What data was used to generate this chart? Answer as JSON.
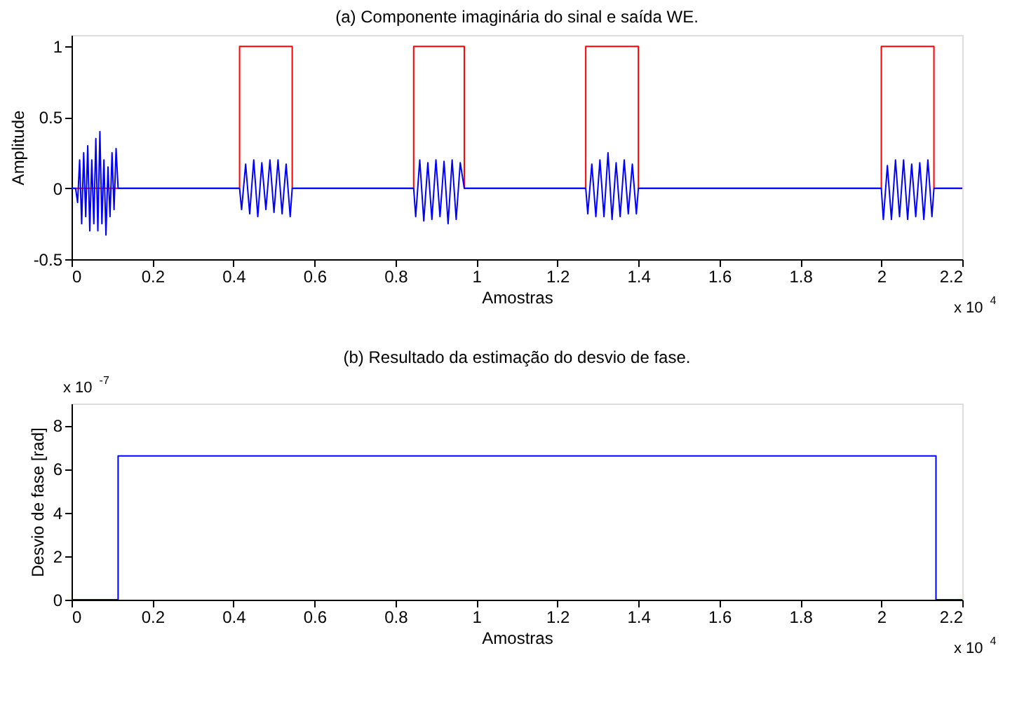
{
  "chart_data": [
    {
      "type": "line",
      "title": "(a) Componente imaginária do sinal e saída WE.",
      "xlabel": "Amostras",
      "ylabel": "Amplitude",
      "grid": false,
      "legend": false,
      "xlim": [
        0,
        2.2
      ],
      "ylim": [
        -0.5,
        1.08
      ],
      "xticks": [
        0,
        0.2,
        0.4,
        0.6,
        0.8,
        1,
        1.2,
        1.4,
        1.6,
        1.8,
        2,
        2.2
      ],
      "yticks": [
        -0.5,
        0,
        0.5,
        1
      ],
      "annotations": [
        "x 10$^{4}$"
      ],
      "series": [
        {
          "color": "#ff0000",
          "x": [
            0,
            0.415,
            0.415,
            0.545,
            0.545,
            0.845,
            0.845,
            0.97,
            0.97,
            1.27,
            1.27,
            1.4,
            1.4,
            2,
            2,
            2.13,
            2.13,
            2.2
          ],
          "values": [
            0,
            0,
            1,
            1,
            0,
            0,
            1,
            1,
            0,
            0,
            1,
            1,
            0,
            0,
            1,
            1,
            0,
            0
          ]
        },
        {
          "color": "#0000ff",
          "x": [
            0,
            0.01,
            0.015,
            0.02,
            0.025,
            0.03,
            0.035,
            0.04,
            0.045,
            0.05,
            0.055,
            0.06,
            0.065,
            0.07,
            0.075,
            0.08,
            0.085,
            0.09,
            0.095,
            0.1,
            0.105,
            0.11,
            0.115,
            0.415,
            0.42,
            0.43,
            0.44,
            0.45,
            0.46,
            0.47,
            0.48,
            0.49,
            0.5,
            0.51,
            0.52,
            0.53,
            0.54,
            0.545,
            0.845,
            0.85,
            0.86,
            0.87,
            0.88,
            0.89,
            0.9,
            0.91,
            0.92,
            0.93,
            0.94,
            0.95,
            0.96,
            0.97,
            1.27,
            1.275,
            1.285,
            1.295,
            1.305,
            1.315,
            1.325,
            1.335,
            1.345,
            1.355,
            1.365,
            1.375,
            1.385,
            1.395,
            1.4,
            2,
            2.005,
            2.015,
            2.025,
            2.035,
            2.045,
            2.055,
            2.065,
            2.075,
            2.085,
            2.095,
            2.105,
            2.115,
            2.125,
            2.13,
            2.2
          ],
          "values": [
            0,
            0,
            -0.1,
            0.2,
            -0.25,
            0.25,
            -0.2,
            0.3,
            -0.3,
            0.2,
            -0.25,
            0.35,
            -0.3,
            0.4,
            -0.25,
            0.2,
            -0.33,
            0.15,
            -0.2,
            0.25,
            -0.15,
            0.28,
            0,
            0,
            -0.15,
            0.17,
            -0.18,
            0.2,
            -0.2,
            0.18,
            -0.15,
            0.2,
            -0.17,
            0.2,
            -0.18,
            0.17,
            -0.2,
            0,
            0,
            -0.2,
            0.2,
            -0.23,
            0.18,
            -0.22,
            0.2,
            -0.2,
            0.19,
            -0.25,
            0.2,
            -0.22,
            0.18,
            0,
            0,
            -0.18,
            0.17,
            -0.2,
            0.2,
            -0.2,
            0.25,
            -0.22,
            0.18,
            -0.2,
            0.2,
            -0.18,
            0.17,
            -0.18,
            0,
            0,
            -0.22,
            0.16,
            -0.22,
            0.2,
            -0.2,
            0.2,
            -0.22,
            0.17,
            -0.2,
            0.18,
            -0.22,
            0.2,
            -0.2,
            0,
            0
          ]
        }
      ]
    },
    {
      "type": "step",
      "title": "(b) Resultado da estimação do desvio de fase.",
      "xlabel": "Amostras",
      "ylabel": "Desvio de fase [rad]",
      "grid": false,
      "legend": false,
      "xlim": [
        0,
        2.2
      ],
      "ylim": [
        0,
        9
      ],
      "xticks": [
        0,
        0.2,
        0.4,
        0.6,
        0.8,
        1,
        1.2,
        1.4,
        1.6,
        1.8,
        2,
        2.2
      ],
      "yticks": [
        0,
        2,
        4,
        6,
        8
      ],
      "annotations": [
        "x 10$^{-7}$",
        "x 10$^{4}$"
      ],
      "series": [
        {
          "color": "#0000ff",
          "x": [
            0,
            0.115,
            2.135,
            2.2
          ],
          "values": [
            0,
            6.6,
            0,
            0
          ]
        }
      ]
    }
  ]
}
